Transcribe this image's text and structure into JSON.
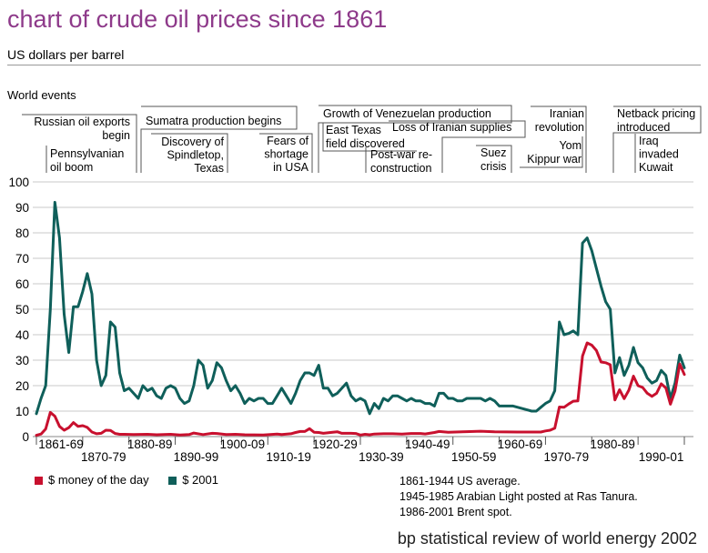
{
  "page": {
    "title": "chart of crude oil prices since 1861",
    "subtitle": "US dollars per barrel",
    "events_label": "World events",
    "source": "bp statistical review of world energy 2002"
  },
  "events": [
    {
      "lines": [
        "Russian oil exports",
        "begin"
      ]
    },
    {
      "lines": [
        "Pennsylvanian",
        "oil boom"
      ]
    },
    {
      "lines": [
        "Sumatra production begins"
      ]
    },
    {
      "lines": [
        "Discovery of",
        "Spindletop,",
        "Texas"
      ]
    },
    {
      "lines": [
        "Fears of",
        "shortage",
        "in USA"
      ]
    },
    {
      "lines": [
        "Growth of Venezuelan production"
      ]
    },
    {
      "lines": [
        "East Texas",
        "field discovered"
      ]
    },
    {
      "lines": [
        "Loss of Iranian supplies"
      ]
    },
    {
      "lines": [
        "Post-war re-",
        "construction"
      ]
    },
    {
      "lines": [
        "Suez",
        "crisis"
      ]
    },
    {
      "lines": [
        "Iranian",
        "revolution"
      ]
    },
    {
      "lines": [
        "Yom",
        "Kippur war"
      ]
    },
    {
      "lines": [
        "Netback pricing",
        "introduced"
      ]
    },
    {
      "lines": [
        "Iraq",
        "invaded",
        "Kuwait"
      ]
    }
  ],
  "legend": [
    {
      "label": "$ money of the day",
      "color": "#c8102e"
    },
    {
      "label": "$ 2001",
      "color": "#0f5f5a"
    }
  ],
  "notes": [
    "1861-1944 US average.",
    "1945-1985 Arabian Light posted at Ras Tanura.",
    "1986-2001 Brent spot."
  ],
  "chart_data": {
    "type": "line",
    "title": "chart of crude oil prices since 1861",
    "ylabel": "US dollars per barrel",
    "xlabel": "",
    "ylim": [
      0,
      100
    ],
    "xlim": [
      1861,
      2001
    ],
    "y_ticks": [
      0,
      10,
      20,
      30,
      40,
      50,
      60,
      70,
      80,
      90,
      100
    ],
    "x_tick_labels": [
      "1861-69",
      "1870-79",
      "1880-89",
      "1890-99",
      "1900-09",
      "1910-19",
      "1920-29",
      "1930-39",
      "1940-49",
      "1950-59",
      "1960-69",
      "1970-79",
      "1980-89",
      "1990-01"
    ],
    "series": [
      {
        "name": "$ money of the day",
        "color": "#c8102e",
        "points": [
          [
            1861,
            0.5
          ],
          [
            1862,
            1
          ],
          [
            1863,
            3
          ],
          [
            1864,
            9.5
          ],
          [
            1865,
            8
          ],
          [
            1866,
            4
          ],
          [
            1867,
            2.5
          ],
          [
            1868,
            3.5
          ],
          [
            1869,
            5.5
          ],
          [
            1870,
            4
          ],
          [
            1871,
            4.3
          ],
          [
            1872,
            3.6
          ],
          [
            1873,
            1.8
          ],
          [
            1874,
            1.1
          ],
          [
            1875,
            1.3
          ],
          [
            1876,
            2.5
          ],
          [
            1877,
            2.4
          ],
          [
            1878,
            1.2
          ],
          [
            1879,
            0.9
          ],
          [
            1880,
            0.9
          ],
          [
            1882,
            0.8
          ],
          [
            1885,
            0.9
          ],
          [
            1887,
            0.7
          ],
          [
            1890,
            0.9
          ],
          [
            1892,
            0.6
          ],
          [
            1894,
            0.8
          ],
          [
            1895,
            1.4
          ],
          [
            1897,
            0.8
          ],
          [
            1899,
            1.3
          ],
          [
            1900,
            1.2
          ],
          [
            1902,
            0.8
          ],
          [
            1904,
            0.9
          ],
          [
            1906,
            0.7
          ],
          [
            1910,
            0.6
          ],
          [
            1913,
            1
          ],
          [
            1914,
            0.8
          ],
          [
            1916,
            1.1
          ],
          [
            1917,
            1.6
          ],
          [
            1918,
            2
          ],
          [
            1919,
            2
          ],
          [
            1920,
            3.1
          ],
          [
            1921,
            1.7
          ],
          [
            1922,
            1.6
          ],
          [
            1923,
            1.3
          ],
          [
            1925,
            1.7
          ],
          [
            1926,
            1.9
          ],
          [
            1927,
            1.3
          ],
          [
            1929,
            1.3
          ],
          [
            1930,
            1.2
          ],
          [
            1931,
            0.6
          ],
          [
            1932,
            0.9
          ],
          [
            1933,
            0.7
          ],
          [
            1934,
            1
          ],
          [
            1936,
            1.1
          ],
          [
            1938,
            1.1
          ],
          [
            1940,
            1
          ],
          [
            1942,
            1.2
          ],
          [
            1944,
            1.2
          ],
          [
            1945,
            1.05
          ],
          [
            1947,
            1.6
          ],
          [
            1948,
            2
          ],
          [
            1950,
            1.7
          ],
          [
            1953,
            1.9
          ],
          [
            1957,
            2.1
          ],
          [
            1960,
            1.9
          ],
          [
            1965,
            1.8
          ],
          [
            1969,
            1.8
          ],
          [
            1970,
            1.8
          ],
          [
            1971,
            2.2
          ],
          [
            1972,
            2.5
          ],
          [
            1973,
            3.3
          ],
          [
            1974,
            11.6
          ],
          [
            1975,
            11.5
          ],
          [
            1976,
            12.8
          ],
          [
            1977,
            13.9
          ],
          [
            1978,
            14
          ],
          [
            1979,
            31.6
          ],
          [
            1980,
            36.8
          ],
          [
            1981,
            35.9
          ],
          [
            1982,
            33.8
          ],
          [
            1983,
            29.3
          ],
          [
            1984,
            29
          ],
          [
            1985,
            28.2
          ],
          [
            1986,
            14.4
          ],
          [
            1987,
            18.4
          ],
          [
            1988,
            14.9
          ],
          [
            1989,
            18.2
          ],
          [
            1990,
            23.7
          ],
          [
            1991,
            20
          ],
          [
            1992,
            19.3
          ],
          [
            1993,
            17
          ],
          [
            1994,
            15.8
          ],
          [
            1995,
            17
          ],
          [
            1996,
            20.7
          ],
          [
            1997,
            19.1
          ],
          [
            1998,
            12.7
          ],
          [
            1999,
            17.9
          ],
          [
            2000,
            28.5
          ],
          [
            2001,
            24.4
          ]
        ]
      },
      {
        "name": "$ 2001",
        "color": "#0f5f5a",
        "points": [
          [
            1861,
            9
          ],
          [
            1862,
            15
          ],
          [
            1863,
            20
          ],
          [
            1864,
            50
          ],
          [
            1865,
            92
          ],
          [
            1866,
            78
          ],
          [
            1867,
            48
          ],
          [
            1868,
            33
          ],
          [
            1869,
            51
          ],
          [
            1870,
            51
          ],
          [
            1871,
            57
          ],
          [
            1872,
            64
          ],
          [
            1873,
            56
          ],
          [
            1874,
            30
          ],
          [
            1875,
            20
          ],
          [
            1876,
            24
          ],
          [
            1877,
            45
          ],
          [
            1878,
            43
          ],
          [
            1879,
            25
          ],
          [
            1880,
            18
          ],
          [
            1881,
            19
          ],
          [
            1882,
            17
          ],
          [
            1883,
            15
          ],
          [
            1884,
            20
          ],
          [
            1885,
            18
          ],
          [
            1886,
            19
          ],
          [
            1887,
            16
          ],
          [
            1888,
            15
          ],
          [
            1889,
            19
          ],
          [
            1890,
            20
          ],
          [
            1891,
            19
          ],
          [
            1892,
            15
          ],
          [
            1893,
            13
          ],
          [
            1894,
            14
          ],
          [
            1895,
            20
          ],
          [
            1896,
            30
          ],
          [
            1897,
            28
          ],
          [
            1898,
            19
          ],
          [
            1899,
            22
          ],
          [
            1900,
            29
          ],
          [
            1901,
            27
          ],
          [
            1902,
            22
          ],
          [
            1903,
            18
          ],
          [
            1904,
            20
          ],
          [
            1905,
            17
          ],
          [
            1906,
            13
          ],
          [
            1907,
            15
          ],
          [
            1908,
            14
          ],
          [
            1909,
            15
          ],
          [
            1910,
            15
          ],
          [
            1911,
            13
          ],
          [
            1912,
            13
          ],
          [
            1913,
            16
          ],
          [
            1914,
            19
          ],
          [
            1915,
            16
          ],
          [
            1916,
            13
          ],
          [
            1917,
            17
          ],
          [
            1918,
            22
          ],
          [
            1919,
            25
          ],
          [
            1920,
            25
          ],
          [
            1921,
            24
          ],
          [
            1922,
            28
          ],
          [
            1923,
            19
          ],
          [
            1924,
            19
          ],
          [
            1925,
            16
          ],
          [
            1926,
            17
          ],
          [
            1927,
            19
          ],
          [
            1928,
            21
          ],
          [
            1929,
            16
          ],
          [
            1930,
            14
          ],
          [
            1931,
            15
          ],
          [
            1932,
            14
          ],
          [
            1933,
            9
          ],
          [
            1934,
            13
          ],
          [
            1935,
            11
          ],
          [
            1936,
            15
          ],
          [
            1937,
            14
          ],
          [
            1938,
            16
          ],
          [
            1939,
            16
          ],
          [
            1940,
            15
          ],
          [
            1941,
            14
          ],
          [
            1942,
            15
          ],
          [
            1943,
            14
          ],
          [
            1944,
            14
          ],
          [
            1945,
            13
          ],
          [
            1946,
            13
          ],
          [
            1947,
            12
          ],
          [
            1948,
            17
          ],
          [
            1949,
            17
          ],
          [
            1950,
            15
          ],
          [
            1951,
            15
          ],
          [
            1952,
            14
          ],
          [
            1953,
            14
          ],
          [
            1954,
            15
          ],
          [
            1955,
            15
          ],
          [
            1956,
            15
          ],
          [
            1957,
            15
          ],
          [
            1958,
            14
          ],
          [
            1959,
            15
          ],
          [
            1960,
            14
          ],
          [
            1961,
            12
          ],
          [
            1962,
            12
          ],
          [
            1963,
            12
          ],
          [
            1964,
            12
          ],
          [
            1965,
            11.5
          ],
          [
            1966,
            11
          ],
          [
            1967,
            10.5
          ],
          [
            1968,
            10
          ],
          [
            1969,
            10
          ],
          [
            1970,
            11.5
          ],
          [
            1971,
            13
          ],
          [
            1972,
            14
          ],
          [
            1973,
            18
          ],
          [
            1974,
            45
          ],
          [
            1975,
            40
          ],
          [
            1976,
            40.5
          ],
          [
            1977,
            41.5
          ],
          [
            1978,
            40
          ],
          [
            1979,
            76
          ],
          [
            1980,
            78
          ],
          [
            1981,
            73
          ],
          [
            1982,
            66
          ],
          [
            1983,
            59
          ],
          [
            1984,
            53
          ],
          [
            1985,
            50
          ],
          [
            1986,
            25
          ],
          [
            1987,
            31
          ],
          [
            1988,
            24
          ],
          [
            1989,
            28
          ],
          [
            1990,
            35
          ],
          [
            1991,
            29
          ],
          [
            1992,
            27
          ],
          [
            1993,
            23
          ],
          [
            1994,
            21
          ],
          [
            1995,
            22
          ],
          [
            1996,
            26
          ],
          [
            1997,
            24
          ],
          [
            1998,
            15
          ],
          [
            1999,
            21
          ],
          [
            2000,
            32
          ],
          [
            2001,
            27
          ]
        ]
      }
    ]
  }
}
